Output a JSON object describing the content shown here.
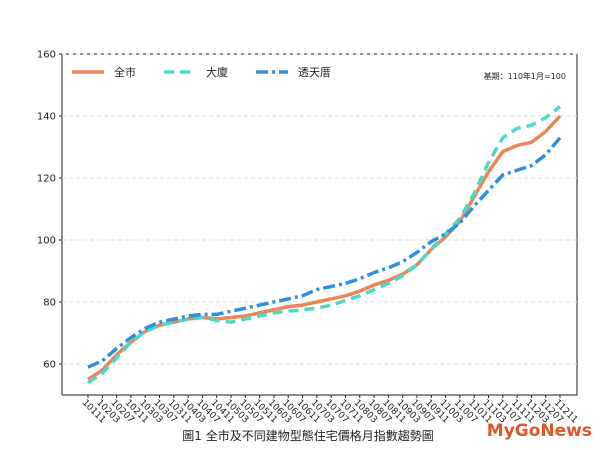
{
  "chart_data": {
    "type": "line",
    "caption": "圖1 全市及不同建物型態住宅價格月指數趨勢圖",
    "annotation": "基期：110年1月=100",
    "watermark": "MyGoNews",
    "categories": [
      "10111",
      "10203",
      "10207",
      "10211",
      "10303",
      "10307",
      "10311",
      "10403",
      "10407",
      "10411",
      "10503",
      "10507",
      "10511",
      "10603",
      "10607",
      "10611",
      "10703",
      "10707",
      "10711",
      "10803",
      "10807",
      "10811",
      "10903",
      "10907",
      "10911",
      "11003",
      "11007",
      "11011",
      "11103",
      "11107",
      "11111",
      "11203",
      "11207",
      "11211"
    ],
    "series": [
      {
        "name": "全市",
        "color": "#ec8658",
        "dash": "solid",
        "values": [
          55,
          58,
          63,
          67,
          70.5,
          72.5,
          73.5,
          74.5,
          75,
          74.5,
          75,
          75.5,
          76.5,
          77.5,
          78.5,
          79,
          80,
          81,
          82,
          83.5,
          85.5,
          87,
          89,
          92,
          97,
          101,
          106,
          114,
          122,
          128.5,
          130.5,
          131.5,
          135,
          140
        ]
      },
      {
        "name": "大廈",
        "color": "#4fd8c8",
        "dash": "dashed",
        "values": [
          54,
          57,
          62,
          67,
          70.5,
          72.5,
          73.5,
          74.5,
          75,
          74,
          73.5,
          74.5,
          75.5,
          76.5,
          77,
          77.5,
          78,
          79,
          80.5,
          82,
          84,
          86,
          88.5,
          92,
          97,
          102,
          107,
          115,
          125,
          133,
          136,
          137,
          139.5,
          143
        ]
      },
      {
        "name": "透天厝",
        "color": "#2e8fdc",
        "dash": "dashdot",
        "values": [
          59,
          61,
          65,
          68.5,
          71.5,
          73.5,
          74.5,
          75.5,
          76,
          76,
          77,
          78,
          79,
          80,
          81,
          82,
          84,
          85,
          86,
          87.5,
          89.5,
          91,
          93,
          96,
          99.5,
          102,
          105.5,
          111,
          116,
          121,
          122.5,
          124,
          127.5,
          133
        ]
      }
    ],
    "ylim": [
      50,
      160
    ],
    "yticks": [
      60,
      80,
      100,
      120,
      140,
      160
    ],
    "grid": true
  }
}
